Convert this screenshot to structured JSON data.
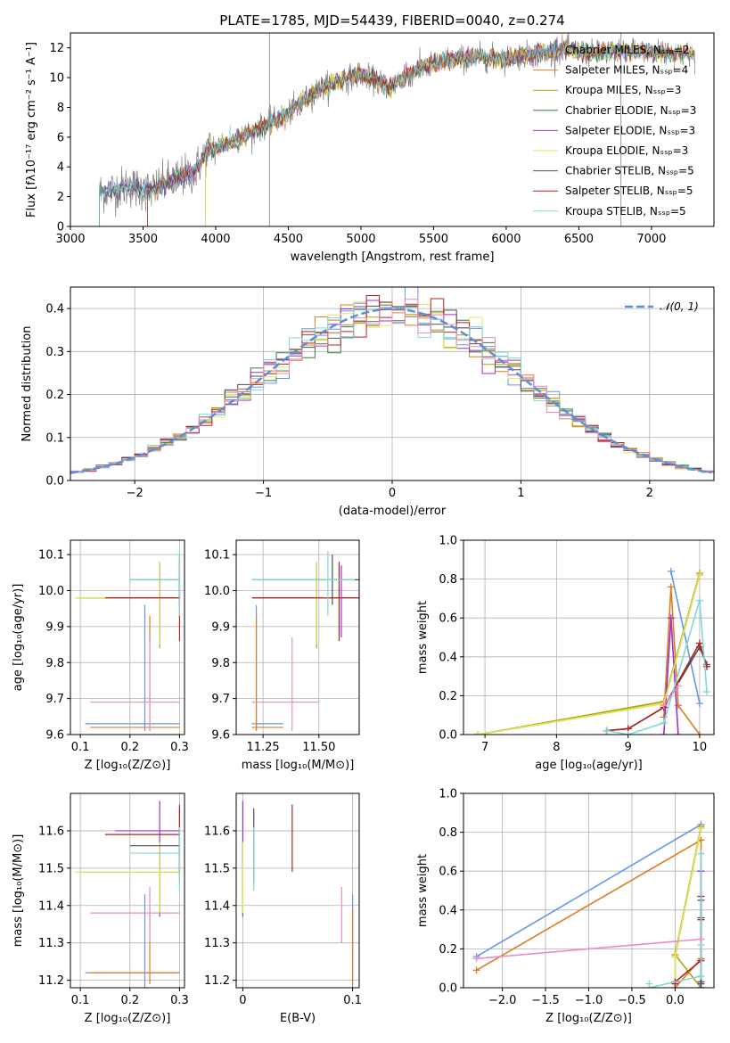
{
  "colors": {
    "Chabrier MILES": "#6495ed",
    "Salpeter MILES": "#e07b22",
    "Kroupa MILES": "#b8a000",
    "Chabrier ELODIE": "#3c7a3c",
    "Salpeter ELODIE": "#9932cc",
    "Kroupa ELODIE": "#e6e65a",
    "Chabrier STELIB": "#505050",
    "Salpeter STELIB": "#b22222",
    "Kroupa STELIB": "#7fd8d8",
    "spectrum_grey": "#808080",
    "pink": "#e88cc4",
    "yellowgreen": "#9acd32",
    "normal_curve": "#5b8fd6"
  },
  "chart_data": [
    {
      "id": "spectrum",
      "type": "line",
      "title": "PLATE=1785, MJD=54439, FIBERID=0040, z=0.274",
      "xlabel": "wavelength [Angstrom, rest frame]",
      "ylabel": "Flux [fλ10⁻¹⁷ erg cm⁻² s⁻¹ A⁻¹]",
      "xlim": [
        3000,
        7430
      ],
      "ylim": [
        0,
        13
      ],
      "xticks": [
        3000,
        3500,
        4000,
        4500,
        5000,
        5500,
        6000,
        6500,
        7000
      ],
      "yticks": [
        0,
        2,
        4,
        6,
        8,
        10,
        12
      ],
      "continuum": [
        [
          3200,
          2.3
        ],
        [
          3400,
          2.7
        ],
        [
          3550,
          2.4
        ],
        [
          3700,
          3.1
        ],
        [
          3850,
          3.6
        ],
        [
          3950,
          5.2
        ],
        [
          4100,
          5.6
        ],
        [
          4300,
          6.6
        ],
        [
          4500,
          7.6
        ],
        [
          4700,
          9.2
        ],
        [
          4850,
          9.8
        ],
        [
          5000,
          10.2
        ],
        [
          5200,
          9.4
        ],
        [
          5400,
          10.6
        ],
        [
          5600,
          11.2
        ],
        [
          5800,
          11.4
        ],
        [
          6000,
          11.3
        ],
        [
          6200,
          11.6
        ],
        [
          6400,
          11.9
        ],
        [
          6600,
          11.6
        ],
        [
          6800,
          11.8
        ],
        [
          7000,
          11.7
        ],
        [
          7200,
          11.6
        ],
        [
          7300,
          11.5
        ]
      ],
      "legend": [
        "Chabrier MILES, Nₛₛₚ=2",
        "Salpeter MILES, Nₛₛₚ=4",
        "Kroupa MILES, Nₛₛₚ=3",
        "Chabrier ELODIE, Nₛₛₚ=3",
        "Salpeter ELODIE, Nₛₛₚ=3",
        "Kroupa ELODIE, Nₛₛₚ=3",
        "Chabrier STELIB, Nₛₛₚ=5",
        "Salpeter STELIB, Nₛₛₚ=5",
        "Kroupa STELIB, Nₛₛₚ=5"
      ],
      "grid": false,
      "legend_position": "top-right"
    },
    {
      "id": "residuals",
      "type": "line",
      "xlabel": "(data-model)/error",
      "ylabel": "Normed distribution",
      "xlim": [
        -2.5,
        2.5
      ],
      "ylim": [
        0,
        0.45
      ],
      "xticks": [
        -2,
        -1,
        0,
        1,
        2
      ],
      "yticks": [
        0.0,
        0.1,
        0.2,
        0.3,
        0.4
      ],
      "bin_width": 0.1,
      "legend": [
        "𝒩(0, 1)"
      ],
      "grid": true,
      "legend_position": "top-right"
    },
    {
      "id": "age_vs_Z",
      "type": "scatter",
      "xlabel": "Z [log₁₀(Z/Z⊙)]",
      "ylabel": "age  [log₁₀(age/yr)]",
      "xlim": [
        0.08,
        0.31
      ],
      "ylim": [
        9.6,
        10.14
      ],
      "xticks": [
        0.1,
        0.2,
        0.3
      ],
      "yticks": [
        9.6,
        9.7,
        9.8,
        9.9,
        10.0,
        10.1
      ],
      "grid": true
    },
    {
      "id": "age_vs_mass",
      "type": "scatter",
      "xlabel": "mass [log₁₀(M/M⊙)]",
      "xlim": [
        11.13,
        11.68
      ],
      "ylim": [
        9.6,
        10.14
      ],
      "xticks": [
        11.25,
        11.5
      ],
      "xticklabels": [
        "11.25",
        "11.50"
      ],
      "yticks": [
        9.6,
        9.7,
        9.8,
        9.9,
        10.0,
        10.1
      ],
      "grid": true
    },
    {
      "id": "weight_vs_age",
      "type": "line",
      "xlabel": "age  [log₁₀(age/yr)]",
      "ylabel": "mass weight",
      "xlim": [
        6.7,
        10.2
      ],
      "ylim": [
        0,
        1.0
      ],
      "xticks": [
        7,
        8,
        9,
        10
      ],
      "yticks": [
        0.0,
        0.2,
        0.4,
        0.6,
        0.8,
        1.0
      ],
      "grid": true
    },
    {
      "id": "mass_vs_Z",
      "type": "scatter",
      "xlabel": "Z [log₁₀(Z/Z⊙)]",
      "ylabel": "mass [log₁₀(M/M⊙)]",
      "xlim": [
        0.08,
        0.31
      ],
      "ylim": [
        11.18,
        11.7
      ],
      "xticks": [
        0.1,
        0.2,
        0.3
      ],
      "yticks": [
        11.2,
        11.3,
        11.4,
        11.5,
        11.6
      ],
      "grid": true
    },
    {
      "id": "mass_vs_ebv",
      "type": "scatter",
      "xlabel": "E(B-V)",
      "xlim": [
        -0.006,
        0.106
      ],
      "ylim": [
        11.18,
        11.7
      ],
      "xticks": [
        0.0,
        0.1
      ],
      "yticks": [
        11.2,
        11.3,
        11.4,
        11.5,
        11.6
      ],
      "grid": true
    },
    {
      "id": "weight_vs_Z",
      "type": "line",
      "xlabel": "Z [log₁₀(Z/Z⊙)]",
      "ylabel": "mass weight",
      "xlim": [
        -2.45,
        0.45
      ],
      "ylim": [
        0,
        1.0
      ],
      "xticks": [
        -2.0,
        -1.5,
        -1.0,
        -0.5,
        0.0
      ],
      "yticks": [
        0.0,
        0.2,
        0.4,
        0.6,
        0.8,
        1.0
      ],
      "grid": true
    }
  ],
  "fits": [
    {
      "model": "Chabrier MILES",
      "ages": [
        10.0,
        9.6
      ],
      "weights": [
        0.16,
        0.84
      ],
      "Zs": [
        -2.3,
        0.3
      ],
      "age": [
        9.63,
        9.61,
        9.96,
        0.11,
        0.23
      ],
      "mass": [
        11.22,
        11.18,
        11.43,
        0.1,
        0.23
      ],
      "ebv": 0.1
    },
    {
      "model": "Salpeter MILES",
      "ages": [
        9.5,
        9.6,
        9.7,
        10.0
      ],
      "weights": [
        0.09,
        0.76,
        0.15,
        0.0
      ],
      "Zs": [
        -2.3,
        0.3,
        0.3,
        0.0
      ],
      "age": [
        9.62,
        9.61,
        9.93,
        0.12,
        0.24
      ],
      "mass": [
        11.22,
        11.19,
        11.39,
        0.12,
        0.23
      ],
      "ebv": 0.1
    },
    {
      "model": "Kroupa MILES",
      "ages": [
        6.9,
        9.5,
        10.0
      ],
      "weights": [
        0.0,
        0.17,
        0.83
      ],
      "Zs": [
        0.3,
        0.0,
        0.3
      ],
      "age": [
        9.98,
        9.84,
        10.08,
        0.09,
        0.26
      ],
      "mass": [
        11.49,
        11.38,
        11.57,
        0.09,
        0.26
      ],
      "ebv": 0.0
    },
    {
      "model": "Chabrier ELODIE",
      "ages": [
        6.9,
        9.5,
        10.0
      ],
      "weights": [
        0.0,
        0.16,
        0.82
      ],
      "Zs": [
        0.0,
        0.0,
        0.3
      ],
      "age": [
        9.98,
        9.85,
        10.08,
        0.1,
        0.26
      ],
      "mass": [
        11.49,
        11.37,
        11.57,
        0.09,
        0.26
      ],
      "ebv": 0.0
    },
    {
      "model": "Salpeter ELODIE",
      "ages": [
        9.5,
        9.6,
        9.7
      ],
      "weights": [
        0.0,
        0.6,
        0.0
      ],
      "Zs": [
        0.3,
        0.3,
        0.3
      ],
      "age": [
        9.98,
        9.87,
        10.07,
        0.17,
        0.26
      ],
      "mass": [
        11.6,
        11.5,
        11.68,
        0.09,
        0.26
      ],
      "ebv": 0.0
    },
    {
      "model": "Kroupa ELODIE",
      "ages": [
        6.9,
        9.5,
        10.0
      ],
      "weights": [
        0.0,
        0.16,
        0.82
      ],
      "Zs": [
        0.0,
        0.0,
        0.3
      ],
      "age": [
        9.98,
        9.85,
        10.08,
        0.09,
        0.26
      ],
      "mass": [
        11.49,
        11.38,
        11.57,
        0.09,
        0.26
      ],
      "ebv": 0.0
    },
    {
      "model": "Chabrier STELIB",
      "ages": [
        8.7,
        9.0,
        9.5,
        10.0,
        10.1
      ],
      "weights": [
        0.02,
        0.03,
        0.14,
        0.45,
        0.36
      ],
      "Zs": [
        0.3,
        0.3,
        0.3,
        0.3,
        0.3
      ],
      "age": [
        10.03,
        9.96,
        10.1,
        0.2,
        0.3
      ],
      "mass": [
        11.56,
        11.46,
        11.66,
        0.13,
        0.3
      ],
      "ebv": 0.01
    },
    {
      "model": "Salpeter STELIB",
      "ages": [
        8.7,
        9.0,
        9.5,
        10.0,
        10.1
      ],
      "weights": [
        0.02,
        0.03,
        0.14,
        0.47,
        0.35
      ],
      "Zs": [
        0.0,
        0.0,
        0.3,
        0.3,
        0.3
      ],
      "age": [
        9.98,
        9.86,
        10.08,
        0.15,
        0.3
      ],
      "mass": [
        11.59,
        11.49,
        11.67,
        0.15,
        0.3
      ],
      "ebv": 0.045
    },
    {
      "model": "Kroupa STELIB",
      "ages": [
        8.7,
        9.0,
        9.5,
        10.0,
        10.1
      ],
      "weights": [
        0.02,
        0.0,
        0.06,
        0.69,
        0.22
      ],
      "Zs": [
        -0.3,
        -0.3,
        0.3,
        0.3,
        0.3
      ],
      "age": [
        10.03,
        9.93,
        10.11,
        0.2,
        0.3
      ],
      "mass": [
        11.54,
        11.44,
        11.61,
        0.13,
        0.3
      ],
      "ebv": 0.01
    },
    {
      "model": "pink",
      "ages": [
        9.5,
        9.7
      ],
      "weights": [
        0.15,
        0.25
      ],
      "Zs": [
        -2.3,
        0.3
      ],
      "age": [
        9.69,
        9.61,
        9.87,
        0.12,
        0.24
      ],
      "mass": [
        11.38,
        11.3,
        11.45,
        0.12,
        0.24
      ],
      "ebv": 0.09
    }
  ]
}
